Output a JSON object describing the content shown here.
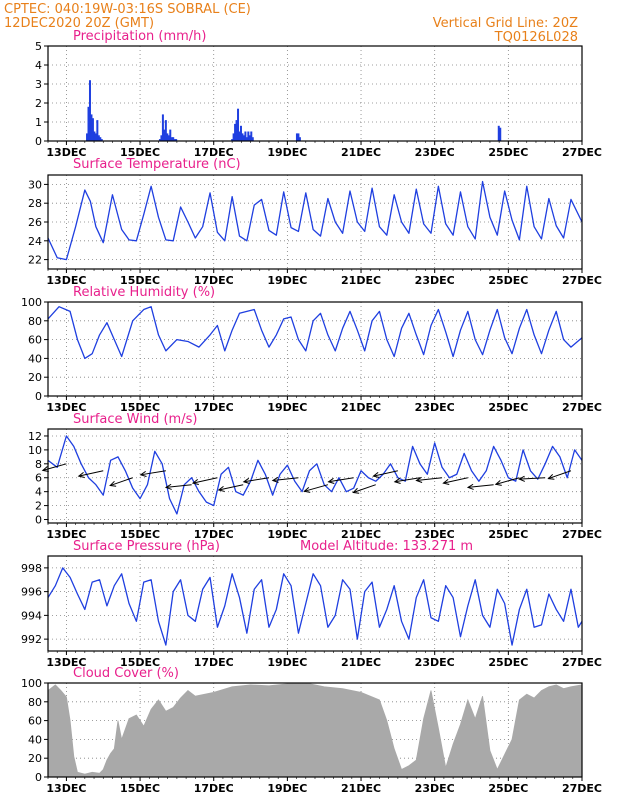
{
  "header": {
    "line1_left": "CPTEC:   040:19W-03:16S   SOBRAL (CE)",
    "line2_left": "12DEC2020 20Z (GMT)",
    "line1_right": "Vertical Grid Line: 20Z",
    "line2_right": "TQ0126L028"
  },
  "colors": {
    "header": "#e8801a",
    "title": "#e8208c",
    "series": "#1f3fe0",
    "cloud": "#a9a9a9",
    "grid": "#808080"
  },
  "x_axis": {
    "start": "2020-12-12 12Z",
    "end": "2020-12-27 00Z",
    "tick_labels": [
      "13DEC",
      "15DEC",
      "17DEC",
      "19DEC",
      "21DEC",
      "23DEC",
      "25DEC",
      "27DEC"
    ]
  },
  "chart_data": [
    {
      "id": "precip",
      "type": "bar",
      "title": "Precipitation (mm/h)",
      "ylim": [
        0,
        5
      ],
      "yticks": [
        0,
        1,
        2,
        3,
        4,
        5
      ],
      "x_unit": "days since 12DEC 12Z",
      "x": [
        1.06,
        1.1,
        1.14,
        1.18,
        1.22,
        1.26,
        1.3,
        1.34,
        1.38,
        1.42,
        1.46,
        3.04,
        3.08,
        3.12,
        3.16,
        3.2,
        3.24,
        3.28,
        3.32,
        3.36,
        3.4,
        3.44,
        3.48,
        5.0,
        5.04,
        5.08,
        5.12,
        5.16,
        5.2,
        5.24,
        5.28,
        5.32,
        5.36,
        5.4,
        5.44,
        5.48,
        5.52,
        5.56,
        6.76,
        6.8,
        6.84,
        12.24,
        12.28
      ],
      "values": [
        0.4,
        1.8,
        3.2,
        1.4,
        1.2,
        0.5,
        0.4,
        1.1,
        0.3,
        0.2,
        0.1,
        0.1,
        0.3,
        1.4,
        0.6,
        1.1,
        0.4,
        0.3,
        0.6,
        0.2,
        0.2,
        0.1,
        0.1,
        0.1,
        0.4,
        0.9,
        1.1,
        1.7,
        0.5,
        0.8,
        0.4,
        0.3,
        0.5,
        0.2,
        0.5,
        0.3,
        0.5,
        0.2,
        0.4,
        0.4,
        0.2,
        0.8,
        0.7
      ]
    },
    {
      "id": "temp",
      "type": "line",
      "title": "Surface Temperature (nC)",
      "ylim": [
        21,
        31
      ],
      "yticks": [
        22,
        24,
        26,
        28,
        30
      ],
      "x_unit": "days since 12DEC 12Z",
      "x": [
        0,
        0.25,
        0.5,
        0.75,
        1.0,
        1.15,
        1.3,
        1.5,
        1.75,
        2.0,
        2.2,
        2.4,
        2.6,
        2.8,
        3.0,
        3.2,
        3.4,
        3.6,
        3.8,
        4.0,
        4.2,
        4.4,
        4.6,
        4.8,
        5.0,
        5.2,
        5.4,
        5.6,
        5.8,
        6.0,
        6.2,
        6.4,
        6.6,
        6.8,
        7.0,
        7.2,
        7.4,
        7.6,
        7.8,
        8.0,
        8.2,
        8.4,
        8.6,
        8.8,
        9.0,
        9.2,
        9.4,
        9.6,
        9.8,
        10.0,
        10.2,
        10.4,
        10.6,
        10.8,
        11.0,
        11.2,
        11.4,
        11.6,
        11.8,
        12.0,
        12.2,
        12.4,
        12.6,
        12.8,
        13.0,
        13.2,
        13.4,
        13.6,
        13.8,
        14.0,
        14.2,
        14.5
      ],
      "values": [
        24.3,
        22.2,
        22.0,
        25.5,
        29.4,
        28.2,
        25.5,
        23.8,
        28.9,
        25.2,
        24.1,
        24.0,
        26.8,
        29.8,
        26.5,
        24.1,
        24.0,
        27.6,
        26.0,
        24.3,
        25.5,
        29.1,
        24.9,
        24.0,
        28.7,
        24.5,
        24.0,
        27.8,
        28.4,
        25.1,
        24.6,
        29.2,
        25.4,
        25.0,
        29.1,
        25.2,
        24.5,
        28.5,
        26.0,
        24.8,
        29.3,
        26.0,
        25.0,
        29.6,
        25.5,
        24.6,
        28.9,
        26.0,
        24.8,
        29.5,
        25.8,
        24.8,
        29.8,
        25.8,
        24.6,
        29.2,
        25.5,
        24.2,
        30.3,
        26.5,
        24.6,
        29.3,
        26.2,
        24.1,
        29.8,
        25.5,
        24.2,
        28.5,
        25.6,
        24.3,
        28.4,
        26.0
      ]
    },
    {
      "id": "rh",
      "type": "line",
      "title": "Relative Humidity (%)",
      "ylim": [
        0,
        100
      ],
      "yticks": [
        0,
        20,
        40,
        60,
        80,
        100
      ],
      "x_unit": "days since 12DEC 12Z",
      "x": [
        0,
        0.3,
        0.6,
        0.8,
        1.0,
        1.2,
        1.4,
        1.6,
        1.8,
        2.0,
        2.3,
        2.6,
        2.8,
        3.0,
        3.2,
        3.5,
        3.8,
        4.1,
        4.4,
        4.6,
        4.8,
        5.0,
        5.2,
        5.4,
        5.6,
        5.8,
        6.0,
        6.2,
        6.4,
        6.6,
        6.8,
        7.0,
        7.2,
        7.4,
        7.6,
        7.8,
        8.0,
        8.2,
        8.4,
        8.6,
        8.8,
        9.0,
        9.2,
        9.4,
        9.6,
        9.8,
        10.0,
        10.2,
        10.4,
        10.6,
        10.8,
        11.0,
        11.2,
        11.4,
        11.6,
        11.8,
        12.0,
        12.2,
        12.4,
        12.6,
        12.8,
        13.0,
        13.2,
        13.4,
        13.6,
        13.8,
        14.0,
        14.2,
        14.5
      ],
      "values": [
        82,
        95,
        90,
        60,
        40,
        45,
        65,
        78,
        60,
        42,
        80,
        92,
        95,
        65,
        48,
        60,
        58,
        52,
        65,
        75,
        48,
        70,
        88,
        90,
        92,
        70,
        52,
        65,
        82,
        84,
        60,
        48,
        80,
        88,
        65,
        48,
        72,
        90,
        70,
        48,
        80,
        90,
        60,
        42,
        72,
        88,
        65,
        44,
        75,
        92,
        68,
        42,
        70,
        90,
        60,
        44,
        70,
        92,
        62,
        45,
        72,
        92,
        65,
        45,
        70,
        90,
        60,
        52,
        62
      ]
    },
    {
      "id": "wind",
      "type": "line",
      "title": "Surface Wind (m/s)",
      "ylim": [
        -0.5,
        13
      ],
      "yticks": [
        0,
        2,
        4,
        6,
        8,
        10,
        12
      ],
      "x_unit": "days since 12DEC 12Z",
      "x": [
        0,
        0.25,
        0.5,
        0.7,
        0.9,
        1.1,
        1.3,
        1.5,
        1.7,
        1.9,
        2.1,
        2.3,
        2.5,
        2.7,
        2.9,
        3.1,
        3.3,
        3.5,
        3.7,
        3.9,
        4.1,
        4.3,
        4.5,
        4.7,
        4.9,
        5.1,
        5.3,
        5.5,
        5.7,
        5.9,
        6.1,
        6.3,
        6.5,
        6.7,
        6.9,
        7.1,
        7.3,
        7.5,
        7.7,
        7.9,
        8.1,
        8.3,
        8.5,
        8.7,
        8.9,
        9.1,
        9.3,
        9.5,
        9.7,
        9.9,
        10.1,
        10.3,
        10.5,
        10.7,
        10.9,
        11.1,
        11.3,
        11.5,
        11.7,
        11.9,
        12.1,
        12.3,
        12.5,
        12.7,
        12.9,
        13.1,
        13.3,
        13.5,
        13.7,
        13.9,
        14.1,
        14.3,
        14.5
      ],
      "values": [
        8.5,
        7.5,
        12.0,
        10.5,
        8.0,
        6.0,
        5.0,
        3.5,
        8.5,
        9.0,
        7.0,
        4.5,
        3.0,
        5.0,
        9.8,
        8.0,
        3.0,
        0.8,
        5.0,
        6.0,
        4.0,
        2.5,
        2.0,
        6.5,
        7.5,
        4.0,
        3.5,
        5.5,
        8.5,
        6.5,
        3.5,
        6.5,
        7.8,
        5.5,
        4.0,
        7.0,
        8.0,
        5.0,
        4.0,
        6.0,
        4.0,
        4.5,
        7.0,
        6.0,
        5.5,
        6.5,
        8.0,
        6.0,
        5.5,
        10.5,
        8.0,
        6.5,
        11.0,
        7.5,
        6.0,
        6.5,
        9.5,
        7.0,
        5.5,
        7.0,
        10.5,
        8.5,
        6.0,
        5.5,
        10.0,
        7.0,
        5.8,
        8.0,
        10.5,
        9.0,
        6.0,
        10.0,
        8.5
      ],
      "barbs_x": [
        0.5,
        1.5,
        2.3,
        3.2,
        3.9,
        4.6,
        5.3,
        6.0,
        6.8,
        7.6,
        8.3,
        8.9,
        9.5,
        10.1,
        10.7,
        11.4,
        12.1,
        12.8,
        13.5,
        14.2
      ],
      "barbs_speed": [
        8,
        7,
        6,
        7,
        5,
        6,
        5,
        6,
        6,
        5,
        6,
        5,
        7,
        6,
        6,
        6,
        5,
        6,
        6,
        7
      ],
      "barbs_from_deg": [
        65,
        70,
        60,
        75,
        80,
        70,
        70,
        75,
        80,
        65,
        75,
        60,
        70,
        75,
        80,
        70,
        80,
        65,
        85,
        60
      ]
    },
    {
      "id": "pressure",
      "type": "line",
      "title": "Surface Pressure (hPa)",
      "annotation": "Model Altitude: 133.271 m",
      "ylim": [
        991,
        999
      ],
      "yticks": [
        992,
        994,
        996,
        998
      ],
      "x_unit": "days since 12DEC 12Z",
      "x": [
        0,
        0.2,
        0.4,
        0.6,
        0.8,
        1.0,
        1.2,
        1.4,
        1.6,
        1.8,
        2.0,
        2.2,
        2.4,
        2.6,
        2.8,
        3.0,
        3.2,
        3.4,
        3.6,
        3.8,
        4.0,
        4.2,
        4.4,
        4.6,
        4.8,
        5.0,
        5.2,
        5.4,
        5.6,
        5.8,
        6.0,
        6.2,
        6.4,
        6.6,
        6.8,
        7.0,
        7.2,
        7.4,
        7.6,
        7.8,
        8.0,
        8.2,
        8.4,
        8.6,
        8.8,
        9.0,
        9.2,
        9.4,
        9.6,
        9.8,
        10.0,
        10.2,
        10.4,
        10.6,
        10.8,
        11.0,
        11.2,
        11.4,
        11.6,
        11.8,
        12.0,
        12.2,
        12.4,
        12.6,
        12.8,
        13.0,
        13.2,
        13.4,
        13.6,
        13.8,
        14.0,
        14.2,
        14.4,
        14.5
      ],
      "values": [
        995.5,
        996.5,
        998.0,
        997.2,
        995.8,
        994.5,
        996.8,
        997.0,
        994.8,
        996.5,
        997.5,
        995.0,
        993.5,
        996.8,
        997.0,
        993.5,
        991.5,
        996.0,
        997.0,
        994.0,
        993.5,
        996.2,
        997.2,
        993.0,
        994.8,
        997.5,
        995.5,
        992.5,
        996.2,
        997.0,
        993.0,
        994.5,
        997.5,
        996.5,
        992.5,
        995.0,
        997.5,
        996.5,
        993.0,
        994.0,
        997.0,
        996.2,
        992.0,
        996.0,
        996.8,
        993.0,
        994.5,
        996.5,
        993.5,
        992.0,
        995.5,
        997.0,
        993.8,
        993.5,
        996.5,
        995.5,
        992.2,
        994.8,
        997.0,
        994.0,
        993.0,
        996.2,
        995.0,
        991.5,
        994.5,
        996.2,
        993.0,
        993.2,
        995.8,
        994.5,
        993.5,
        996.2,
        993.0,
        993.5
      ]
    },
    {
      "id": "cloud",
      "type": "area",
      "title": "Cloud Cover (%)",
      "ylim": [
        0,
        100
      ],
      "yticks": [
        0,
        20,
        40,
        60,
        80,
        100
      ],
      "x_unit": "days since 12DEC 12Z",
      "x": [
        0,
        0.2,
        0.35,
        0.5,
        0.6,
        0.7,
        0.8,
        1.0,
        1.2,
        1.4,
        1.5,
        1.6,
        1.7,
        1.8,
        1.9,
        2.0,
        2.2,
        2.4,
        2.6,
        2.8,
        3.0,
        3.2,
        3.4,
        3.6,
        3.8,
        4.0,
        4.5,
        5.0,
        5.5,
        6.0,
        6.5,
        7.0,
        7.5,
        8.0,
        8.5,
        9.0,
        9.2,
        9.4,
        9.6,
        9.8,
        10.0,
        10.2,
        10.4,
        10.6,
        10.8,
        11.0,
        11.2,
        11.4,
        11.6,
        11.8,
        12.0,
        12.2,
        12.4,
        12.6,
        12.8,
        13.0,
        13.2,
        13.4,
        13.6,
        13.8,
        14.0,
        14.2,
        14.5
      ],
      "values": [
        92,
        98,
        92,
        85,
        60,
        22,
        5,
        3,
        5,
        4,
        8,
        18,
        25,
        30,
        60,
        40,
        62,
        66,
        54,
        72,
        82,
        70,
        74,
        84,
        92,
        86,
        90,
        96,
        98,
        97,
        99,
        100,
        96,
        94,
        90,
        82,
        60,
        30,
        8,
        12,
        18,
        62,
        92,
        52,
        10,
        35,
        56,
        82,
        62,
        86,
        28,
        8,
        24,
        40,
        82,
        88,
        84,
        92,
        96,
        98,
        94,
        96,
        98
      ]
    }
  ]
}
